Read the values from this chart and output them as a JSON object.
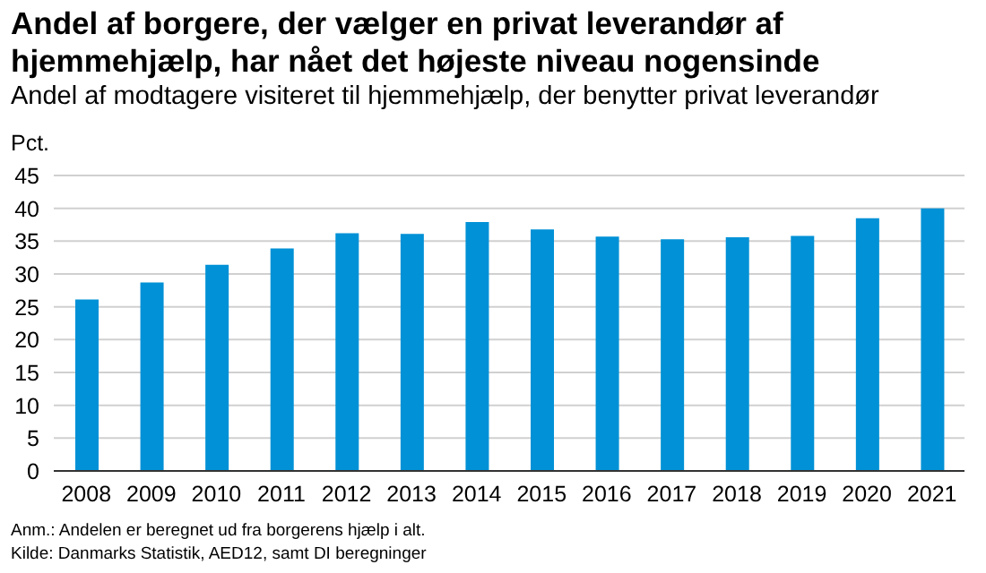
{
  "chart_data": {
    "type": "bar",
    "title": "Andel af borgere, der vælger en privat leverandør af hjemmehjælp, har nået det højeste niveau nogensinde",
    "subtitle": "Andel af modtagere visiteret til hjemmehjælp, der benytter privat leverandør",
    "ylabel": "Pct.",
    "categories": [
      "2008",
      "2009",
      "2010",
      "2011",
      "2012",
      "2013",
      "2014",
      "2015",
      "2016",
      "2017",
      "2018",
      "2019",
      "2020",
      "2021"
    ],
    "values": [
      26.1,
      28.7,
      31.4,
      33.9,
      36.2,
      36.1,
      37.9,
      36.8,
      35.7,
      35.3,
      35.6,
      35.8,
      38.5,
      40.0
    ],
    "color": "#0091d6",
    "ylim": [
      0,
      45
    ],
    "yticks": [
      0,
      5,
      10,
      15,
      20,
      25,
      30,
      35,
      40,
      45
    ],
    "grid": "y",
    "annotations": [
      "Anm.: Andelen er beregnet ud fra borgerens hjælp i alt.",
      "Kilde: Danmarks Statistik, AED12, samt DI beregninger"
    ]
  }
}
